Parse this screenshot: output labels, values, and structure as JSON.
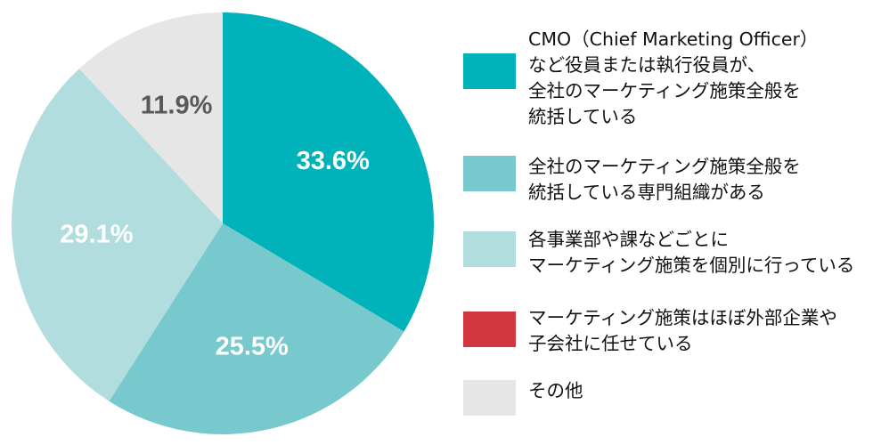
{
  "chart_data": {
    "type": "pie",
    "slices": [
      {
        "label": "CMO（Chief Marketing Officer）\nなど役員または執行役員が、\n全社のマーケティング施策全般を\n統括している",
        "value": 33.6,
        "display": "33.6%",
        "color": "#00b3bb",
        "text_color": "#ffffff"
      },
      {
        "label": "全社のマーケティング施策全般を\n統括している専門組織がある",
        "value": 25.5,
        "display": "25.5%",
        "color": "#77c9cd",
        "text_color": "#ffffff"
      },
      {
        "label": "各事業部や課などごとに\nマーケティング施策を個別に行っている",
        "value": 29.1,
        "display": "29.1%",
        "color": "#b1dddf",
        "text_color": "#ffffff"
      },
      {
        "label": "マーケティング施策はほぼ外部企業や\n子会社に任せている",
        "value": 0,
        "display": "",
        "color": "#d1363f",
        "text_color": "#ffffff"
      },
      {
        "label": "その他",
        "value": 11.9,
        "display": "11.9%",
        "color": "#e6e6e6",
        "text_color": "#595959"
      }
    ],
    "start_angle_deg": 0,
    "direction": "clockwise",
    "legend_position": "right"
  }
}
